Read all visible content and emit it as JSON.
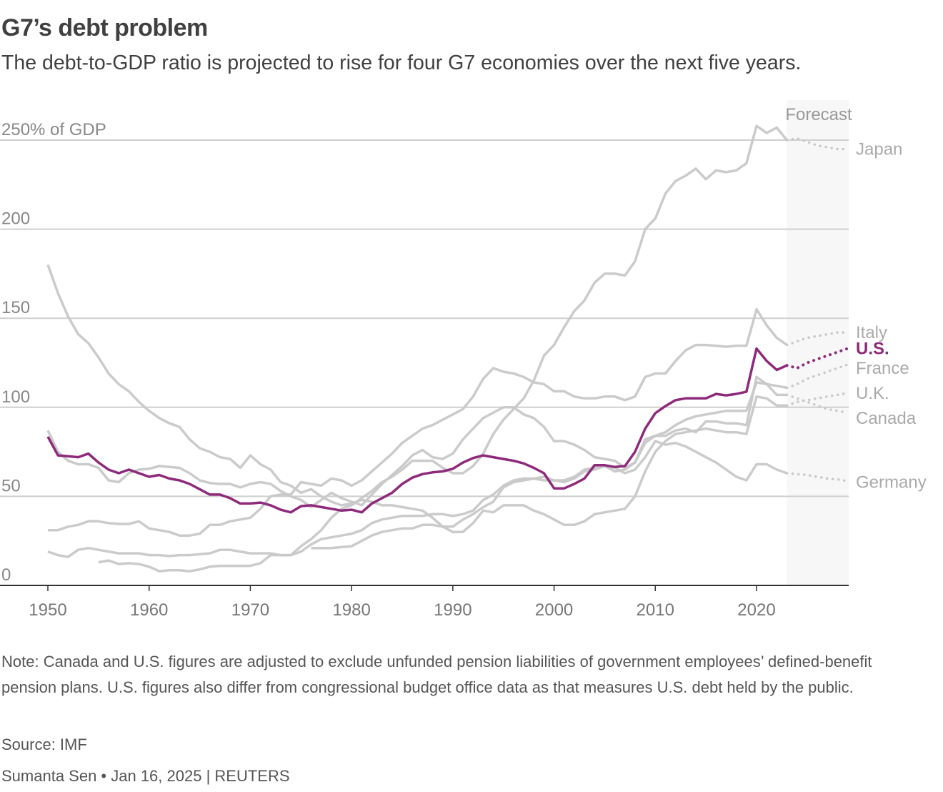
{
  "header": {
    "title": "G7’s debt problem",
    "subtitle": "The debt-to-GDP ratio is projected to rise for four G7 economies over the next five years."
  },
  "chart_data": {
    "type": "line",
    "title": "G7’s debt problem",
    "ylabel": "% of GDP",
    "ylim": [
      0,
      250
    ],
    "xlim": [
      1945,
      2029
    ],
    "y_ticks": [
      {
        "value": 0,
        "label": "0"
      },
      {
        "value": 50,
        "label": "50"
      },
      {
        "value": 100,
        "label": "100"
      },
      {
        "value": 150,
        "label": "150"
      },
      {
        "value": 200,
        "label": "200"
      },
      {
        "value": 250,
        "label": "250% of GDP"
      }
    ],
    "x_ticks": [
      "1950",
      "1960",
      "1970",
      "1980",
      "1990",
      "2000",
      "2010",
      "2020"
    ],
    "grid": true,
    "forecast": {
      "label": "Forecast",
      "start": 2023,
      "end": 2029
    },
    "colors": {
      "highlight": "#8e2a7b",
      "other": "#c8c8c8",
      "forecast_bg": "#f7f7f7"
    },
    "series": [
      {
        "name": "Japan",
        "highlight": false,
        "start": 1955,
        "values": [
          13,
          14,
          12,
          12.5,
          12,
          10.5,
          8,
          8.5,
          8.5,
          8,
          9,
          10.5,
          11,
          11,
          11,
          11,
          12.5,
          17,
          17,
          17,
          22,
          26,
          31,
          38,
          43,
          45,
          49,
          53,
          58,
          61,
          65,
          70,
          70,
          70,
          66,
          63,
          63,
          67,
          74,
          85,
          93,
          99,
          105,
          115,
          129,
          135,
          145,
          154,
          160,
          170,
          175,
          175,
          174,
          182,
          200,
          206,
          220,
          227,
          230,
          234,
          228,
          233,
          232,
          233,
          237,
          258,
          254,
          257,
          250
        ],
        "forecast": [
          250,
          251,
          249,
          247,
          246,
          245,
          245
        ]
      },
      {
        "name": "Italy",
        "highlight": false,
        "start": 1950,
        "values": [
          31,
          31,
          33,
          34,
          36,
          36,
          35,
          34.5,
          34.5,
          36,
          32,
          31,
          30,
          28,
          28,
          29,
          34,
          34,
          36,
          37,
          38,
          43,
          50,
          51,
          51,
          58,
          57,
          56,
          60,
          59,
          56,
          59,
          64,
          69,
          74,
          80,
          84,
          88,
          90,
          93,
          96,
          99,
          106,
          116,
          122,
          120,
          119,
          117,
          114,
          113,
          109,
          109,
          106,
          105,
          105,
          106,
          106,
          104,
          106,
          117,
          119,
          119,
          126,
          132,
          135,
          135,
          134.5,
          134,
          134.5,
          134.5,
          155,
          146,
          139,
          135
        ],
        "forecast": [
          135,
          137,
          139,
          140,
          141,
          142,
          142
        ]
      },
      {
        "name": "U.S.",
        "highlight": true,
        "start": 1950,
        "values": [
          83.5,
          73,
          72.5,
          72,
          74,
          69,
          65,
          63,
          65,
          63,
          61,
          62,
          60,
          59,
          57,
          54,
          51,
          51,
          49,
          46,
          46,
          46.5,
          45,
          42.5,
          41,
          44.5,
          45,
          44,
          43,
          42,
          42.5,
          41,
          46,
          49,
          52,
          57,
          60.5,
          62.5,
          63.5,
          64,
          65.5,
          69,
          71.5,
          73,
          72,
          71,
          70,
          68.5,
          66,
          63,
          54.5,
          54.5,
          57,
          60,
          67.5,
          67.5,
          66.5,
          67,
          75,
          88,
          96.7,
          100.7,
          104,
          105,
          105,
          105,
          107.5,
          106.7,
          107.5,
          108.7,
          133,
          126,
          121,
          123.5
        ],
        "forecast": [
          123.5,
          122,
          125,
          127,
          129,
          131,
          133
        ]
      },
      {
        "name": "France",
        "highlight": false,
        "start": 1950,
        "values": [
          19,
          17,
          16,
          20,
          21,
          20,
          19,
          18,
          18,
          18,
          17,
          17,
          16.5,
          17,
          17,
          17.5,
          18,
          20,
          20,
          19,
          18,
          18,
          18,
          17,
          17,
          19,
          23,
          26,
          27,
          28,
          29,
          31,
          35,
          37,
          38,
          39,
          39,
          39,
          40,
          40,
          39,
          40,
          42,
          48,
          51,
          56,
          59,
          60,
          60,
          59,
          59,
          59,
          61,
          65,
          66,
          67,
          64,
          65,
          69,
          80,
          84,
          86,
          90,
          93,
          95,
          96,
          97,
          98,
          98,
          98,
          114,
          113,
          112,
          111
        ],
        "forecast": [
          111,
          113,
          116,
          118,
          120,
          122,
          124
        ]
      },
      {
        "name": "U.K.",
        "highlight": false,
        "start": 1950,
        "values": [
          180,
          164,
          151,
          141,
          136,
          128,
          119,
          113,
          109,
          103,
          98,
          94,
          91,
          89,
          82,
          77,
          75,
          72,
          71,
          66,
          73,
          68,
          65,
          58,
          56,
          52,
          54,
          50,
          47,
          45,
          46,
          48,
          47,
          45,
          45,
          44,
          43,
          42,
          38,
          33,
          30,
          30,
          35,
          42,
          41,
          45,
          45,
          45,
          42,
          40,
          37,
          34,
          34,
          36,
          40,
          41,
          42,
          43,
          50,
          64,
          75,
          81,
          85,
          86,
          87,
          88,
          87,
          86,
          86,
          85,
          106,
          105,
          101,
          101
        ],
        "forecast": [
          101,
          103,
          104,
          105,
          106,
          107,
          108
        ]
      },
      {
        "name": "Canada",
        "highlight": false,
        "start": 1950,
        "values": [
          87,
          75,
          70,
          68,
          68,
          66,
          59,
          58,
          63,
          65,
          65.5,
          67,
          66.5,
          66,
          63,
          59,
          57.5,
          57,
          57,
          55,
          57,
          58,
          57,
          53,
          50,
          48,
          44,
          48,
          52,
          49,
          47,
          45,
          51,
          57,
          62,
          67,
          73,
          76,
          72,
          71,
          74,
          82,
          88,
          94,
          97,
          100,
          100,
          96,
          94,
          89,
          81,
          81,
          79,
          76,
          72,
          71,
          70,
          66,
          69,
          82,
          84,
          84,
          87,
          88,
          86,
          92,
          92,
          91,
          91,
          90,
          117,
          113,
          107,
          107
        ],
        "forecast": [
          107,
          105,
          103,
          101,
          99,
          98,
          97
        ]
      },
      {
        "name": "Germany",
        "highlight": false,
        "start": 1976,
        "values": [
          21,
          21,
          21,
          21.5,
          22,
          25,
          28,
          30,
          31,
          32,
          32,
          34,
          34,
          33,
          33,
          37,
          40,
          44,
          47,
          55,
          58,
          59,
          60,
          61,
          59,
          58,
          60,
          64,
          65,
          67,
          66,
          63,
          65,
          72,
          81,
          79,
          80,
          78,
          75,
          72,
          69,
          65,
          61,
          59,
          68,
          68,
          65,
          63
        ],
        "forecast": [
          63,
          62.5,
          62,
          61,
          60,
          59.5,
          58.5
        ]
      }
    ]
  },
  "footer": {
    "note": "Note: Canada and U.S. figures are adjusted to exclude unfunded pension liabilities of government employees’ defined-benefit pension plans. U.S. figures also differ from congressional budget office data as that measures U.S. debt held by the public.",
    "source": "Source: IMF",
    "byline": "Sumanta Sen • Jan 16, 2025 | REUTERS"
  }
}
